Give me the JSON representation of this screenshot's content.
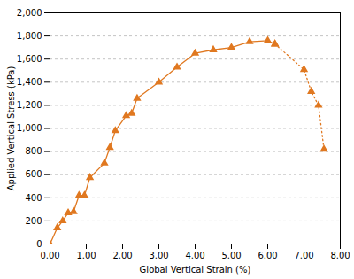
{
  "chart_data": {
    "type": "line",
    "xlabel": "Global Vertical Strain (%)",
    "ylabel": "Applied Vertical Stress (kPa)",
    "xlim": [
      0,
      8.0
    ],
    "ylim": [
      0,
      2000
    ],
    "xticks": [
      {
        "value": 0,
        "label": "0.00"
      },
      {
        "value": 1,
        "label": "1.00"
      },
      {
        "value": 2,
        "label": "2.00"
      },
      {
        "value": 3,
        "label": "3.00"
      },
      {
        "value": 4,
        "label": "4.00"
      },
      {
        "value": 5,
        "label": "5.00"
      },
      {
        "value": 6,
        "label": "6.00"
      },
      {
        "value": 7,
        "label": "7.00"
      },
      {
        "value": 8,
        "label": "8.00"
      }
    ],
    "yticks": [
      0,
      200,
      400,
      600,
      800,
      {
        "value": 1000,
        "label": "1,000"
      },
      {
        "value": 1200,
        "label": "1,200"
      },
      {
        "value": 1400,
        "label": "1,400"
      },
      {
        "value": 1600,
        "label": "1,600"
      },
      {
        "value": 1800,
        "label": "1,800"
      },
      {
        "value": 2000,
        "label": "2,000"
      }
    ],
    "grid": true,
    "series": [
      {
        "color": "#E07820",
        "marker": "triangle",
        "line_style": "solid",
        "x": [
          0.0,
          0.2,
          0.35,
          0.5,
          0.65,
          0.8,
          0.95,
          1.1,
          1.5,
          1.65,
          1.8,
          2.1,
          2.25,
          2.4,
          3.0,
          3.5,
          4.0,
          4.5,
          5.0,
          5.5,
          6.0,
          6.2
        ],
        "values": [
          0,
          140,
          200,
          270,
          280,
          420,
          420,
          575,
          700,
          835,
          980,
          1110,
          1130,
          1260,
          1400,
          1530,
          1650,
          1680,
          1700,
          1750,
          1760,
          1730
        ]
      },
      {
        "color": "#E07820",
        "marker": "triangle",
        "line_style": "dotted",
        "x": [
          6.2,
          7.0,
          7.2,
          7.4,
          7.55
        ],
        "values": [
          1730,
          1510,
          1320,
          1200,
          820
        ]
      }
    ]
  }
}
